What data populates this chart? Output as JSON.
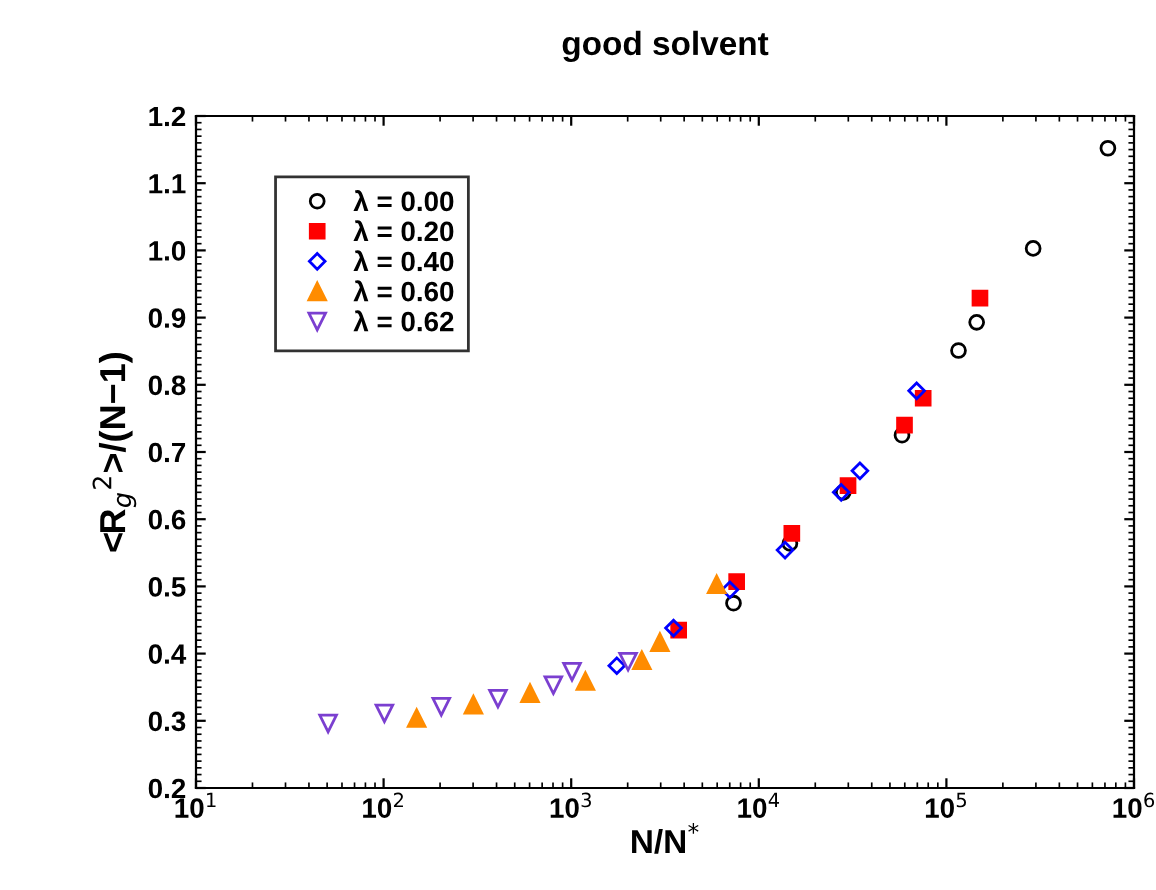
{
  "chart_data": {
    "type": "scatter",
    "title": "good solvent",
    "xlabel": "N/N$^{*}$",
    "ylabel": "<R$_{g}$$^{2}$>/(N−1)",
    "log": "x",
    "xlim": [
      10,
      1000000
    ],
    "ylim": [
      0.2,
      1.2
    ],
    "xticks": [
      {
        "value": 10,
        "label": "10$^{1}$"
      },
      {
        "value": 100,
        "label": "10$^{2}$"
      },
      {
        "value": 1000,
        "label": "10$^{3}$"
      },
      {
        "value": 10000,
        "label": "10$^{4}$"
      },
      {
        "value": 100000,
        "label": "10$^{5}$"
      },
      {
        "value": 1000000,
        "label": "10$^{6}$"
      }
    ],
    "yticks": [
      0.2,
      0.3,
      0.4,
      0.5,
      0.6,
      0.7,
      0.8,
      0.9,
      {
        "value": 1.0,
        "label": "1.0"
      },
      1.1,
      1.2
    ],
    "grid": false,
    "legend": "top left",
    "series": [
      {
        "name": "λ = 0.00",
        "color": "#000000",
        "marker": "circle",
        "x": [
          7330,
          14650,
          28200,
          58000,
          116000,
          145000,
          290000,
          726000
        ],
        "values": [
          0.475,
          0.564,
          0.64,
          0.725,
          0.851,
          0.893,
          1.003,
          1.152
        ]
      },
      {
        "name": "λ = 0.20",
        "color": "#ff0000",
        "marker": "square",
        "x": [
          3740,
          7620,
          15000,
          29900,
          59800,
          75200,
          151000
        ],
        "values": [
          0.435,
          0.507,
          0.579,
          0.65,
          0.74,
          0.78,
          0.929
        ]
      },
      {
        "name": "λ = 0.40",
        "color": "#0000ff",
        "marker": "diamond",
        "x": [
          1750,
          3510,
          7010,
          13800,
          27500,
          34600,
          69400
        ],
        "values": [
          0.382,
          0.438,
          0.495,
          0.554,
          0.64,
          0.672,
          0.791
        ]
      },
      {
        "name": "λ = 0.60",
        "color": "#ff8c00",
        "marker": "triangle",
        "x": [
          150,
          301,
          603,
          1190,
          2380,
          2970,
          5960
        ],
        "values": [
          0.304,
          0.324,
          0.341,
          0.359,
          0.39,
          0.417,
          0.503
        ]
      },
      {
        "name": "λ = 0.62",
        "color": "#7b3fd0",
        "marker": "triangle_down",
        "x": [
          50.6,
          101,
          203,
          407,
          803,
          1010,
          2010
        ],
        "values": [
          0.296,
          0.311,
          0.321,
          0.333,
          0.353,
          0.373,
          0.388
        ]
      }
    ]
  }
}
